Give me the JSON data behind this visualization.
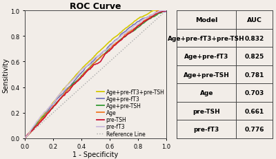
{
  "title": "ROC Curve",
  "xlabel": "1 - Specificity",
  "ylabel": "Sensitivity",
  "curves": [
    {
      "label": "Age+pre-fT3+pre-TSH",
      "auc": 0.832,
      "color": "#d4c800",
      "lw": 1.2
    },
    {
      "label": "Age+pre-fT3",
      "auc": 0.825,
      "color": "#7777bb",
      "lw": 1.2
    },
    {
      "label": "Age+pre-TSH",
      "auc": 0.781,
      "color": "#339933",
      "lw": 1.2
    },
    {
      "label": "Age",
      "auc": 0.703,
      "color": "#ee7722",
      "lw": 1.2
    },
    {
      "label": "pre-TSH",
      "auc": 0.661,
      "color": "#cc1133",
      "lw": 1.2
    },
    {
      "label": "pre-fT3",
      "auc": 0.776,
      "color": "#ccbbdd",
      "lw": 1.2
    }
  ],
  "table_models": [
    "Age+pre-fT3+pre-TSH",
    "Age+pre-fT3",
    "Age+pre-TSH",
    "Age",
    "pre-TSH",
    "pre-fT3"
  ],
  "table_aucs": [
    "0.832",
    "0.825",
    "0.781",
    "0.703",
    "0.661",
    "0.776"
  ],
  "table_header_model": "Model",
  "table_header_auc": "AUC",
  "bg_color": "#f2ede8",
  "title_fontsize": 9,
  "axis_fontsize": 7,
  "tick_fontsize": 6,
  "legend_fontsize": 5.5,
  "table_fontsize": 6.8
}
